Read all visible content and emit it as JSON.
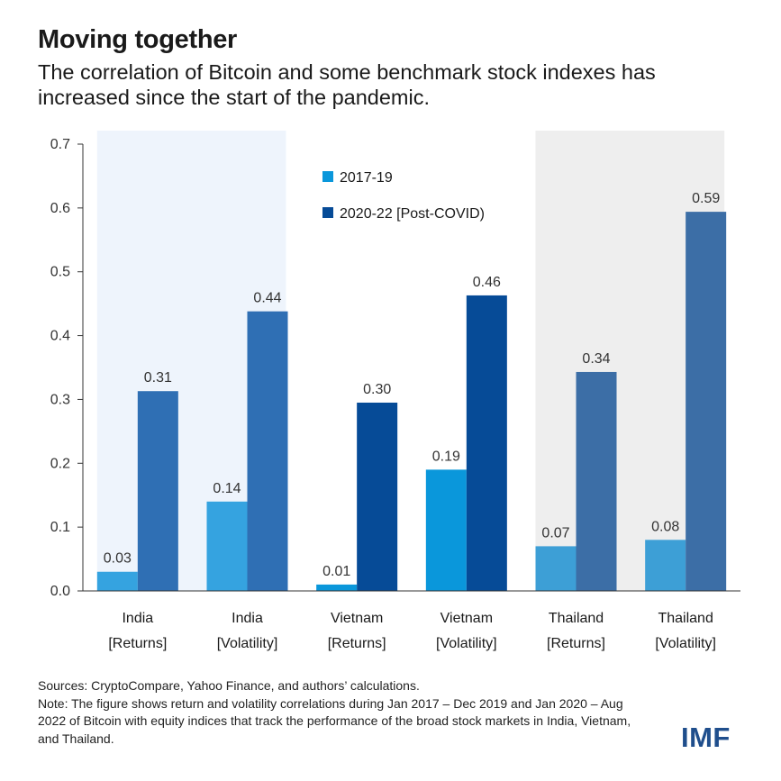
{
  "header": {
    "title": "Moving together",
    "subtitle": "The correlation of Bitcoin and some benchmark stock indexes has increased since the start of the pandemic."
  },
  "chart_data": {
    "type": "bar",
    "categories": [
      [
        "India",
        "[Returns]"
      ],
      [
        "India",
        "[Volatility]"
      ],
      [
        "Vietnam",
        "[Returns]"
      ],
      [
        "Vietnam",
        "[Volatility]"
      ],
      [
        "Thailand",
        "[Returns]"
      ],
      [
        "Thailand",
        "[Volatility]"
      ]
    ],
    "series": [
      {
        "name": "2017-19",
        "values": [
          0.03,
          0.14,
          0.01,
          0.19,
          0.07,
          0.08
        ],
        "labels": [
          "0.03",
          "0.14",
          "0.01",
          "0.19",
          "0.07",
          "0.08"
        ],
        "colors": [
          "#35a3e0",
          "#35a3e0",
          "#0a97db",
          "#0a97db",
          "#3d9fd6",
          "#3d9fd6"
        ]
      },
      {
        "name": "2020-22 [Post-COVID)",
        "values": [
          0.313,
          0.438,
          0.295,
          0.463,
          0.343,
          0.594
        ],
        "labels": [
          "0.31",
          "0.44",
          "0.30",
          "0.46",
          "0.34",
          "0.59"
        ],
        "colors": [
          "#2f6fb4",
          "#2f6fb4",
          "#064b97",
          "#064b97",
          "#3c6ea6",
          "#3c6ea6"
        ]
      }
    ],
    "ylim": [
      0,
      0.7
    ],
    "yticks": [
      "0.0",
      "0.1",
      "0.2",
      "0.3",
      "0.4",
      "0.5",
      "0.6",
      "0.7"
    ],
    "grid": false,
    "legend": "top-center",
    "group_shading": [
      {
        "name": "India",
        "color": "#eef4fc"
      },
      {
        "name": "Thailand",
        "color": "#eeeeee"
      }
    ]
  },
  "footer": {
    "sources": "Sources: CryptoCompare, Yahoo Finance, and authors’ calculations.",
    "note": "Note: The figure shows return and volatility correlations during Jan 2017 – Dec 2019 and Jan 2020 – Aug 2022 of Bitcoin with equity indices that track the performance of the broad stock markets in India, Vietnam, and Thailand."
  },
  "logo": {
    "text": "IMF",
    "color": "#1f4e8c"
  }
}
